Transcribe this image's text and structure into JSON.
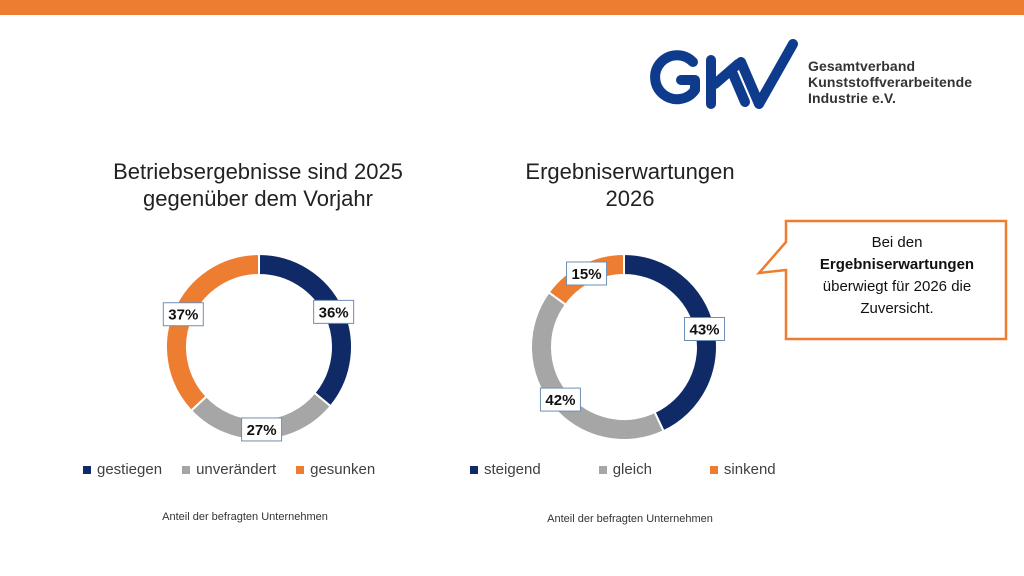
{
  "colors": {
    "accent_bar": "#ED7D31",
    "navy": "#0F2A66",
    "gray": "#A6A6A6",
    "orange": "#ED7D31",
    "logo_blue": "#0E3B8C",
    "callout_border": "#ED7D31",
    "label_border": "#6E8FB5"
  },
  "logo": {
    "mark": "GKV",
    "lines": [
      "Gesamtverband",
      "Kunststoffverarbeitende",
      "Industrie e.V."
    ]
  },
  "callout": {
    "line1": "Bei den",
    "bold": "Ergebniserwartungen",
    "line3": "überwiegt für 2026 die",
    "line4": "Zuversicht."
  },
  "chart_data": [
    {
      "type": "pie",
      "variant": "donut",
      "title": "Betriebsergebnisse sind 2025 gegenüber dem Vorjahr",
      "title_lines": [
        "Betriebsergebnisse sind 2025",
        "gegenüber dem Vorjahr"
      ],
      "categories": [
        "gestiegen",
        "unverändert",
        "gesunken"
      ],
      "values": [
        36,
        27,
        37
      ],
      "labels": [
        "36%",
        "27%",
        "37%"
      ],
      "colors": [
        "#0F2A66",
        "#A6A6A6",
        "#ED7D31"
      ],
      "legend": "bottom",
      "footnote": "Anteil der befragten Unternehmen"
    },
    {
      "type": "pie",
      "variant": "donut",
      "title": "Ergebniserwartungen 2026",
      "title_lines": [
        "Ergebniserwartungen",
        "2026"
      ],
      "categories": [
        "steigend",
        "gleich",
        "sinkend"
      ],
      "values": [
        43,
        42,
        15
      ],
      "labels": [
        "43%",
        "42%",
        "15%"
      ],
      "colors": [
        "#0F2A66",
        "#A6A6A6",
        "#ED7D31"
      ],
      "legend": "bottom",
      "footnote": "Anteil der befragten Unternehmen"
    }
  ]
}
